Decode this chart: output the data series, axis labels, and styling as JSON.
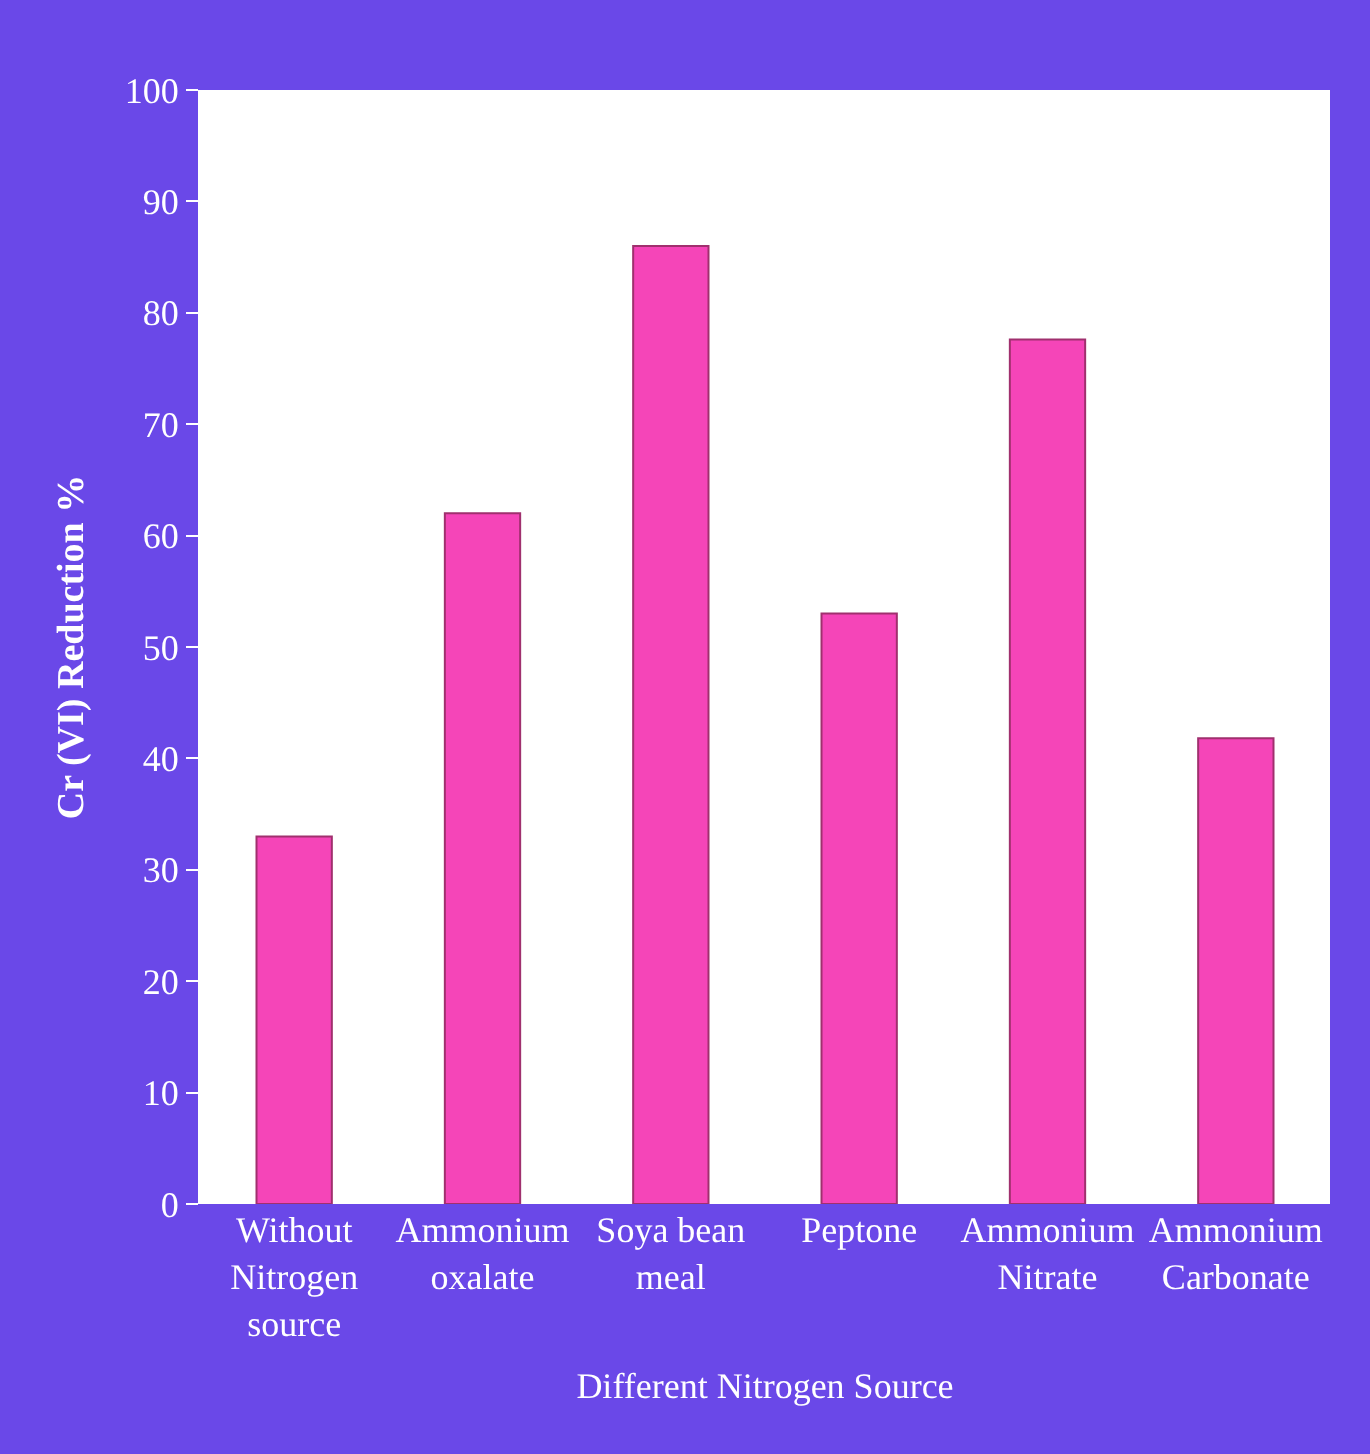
{
  "chart_data": {
    "type": "bar",
    "categories": [
      "Without Nitrogen source",
      "Ammonium oxalate",
      "Soya bean meal",
      "Peptone",
      "Ammonium Nitrate",
      "Ammonium Carbonate"
    ],
    "values": [
      33,
      62,
      86,
      53,
      77.6,
      41.8
    ],
    "color": "#f545b8",
    "xlabel": "Different Nitrogen Source",
    "ylabel": "Cr (VI) Reduction %",
    "ylim": [
      0,
      100
    ],
    "yticks": [
      0,
      10,
      20,
      30,
      40,
      50,
      60,
      70,
      80,
      90,
      100
    ],
    "legend": false
  }
}
